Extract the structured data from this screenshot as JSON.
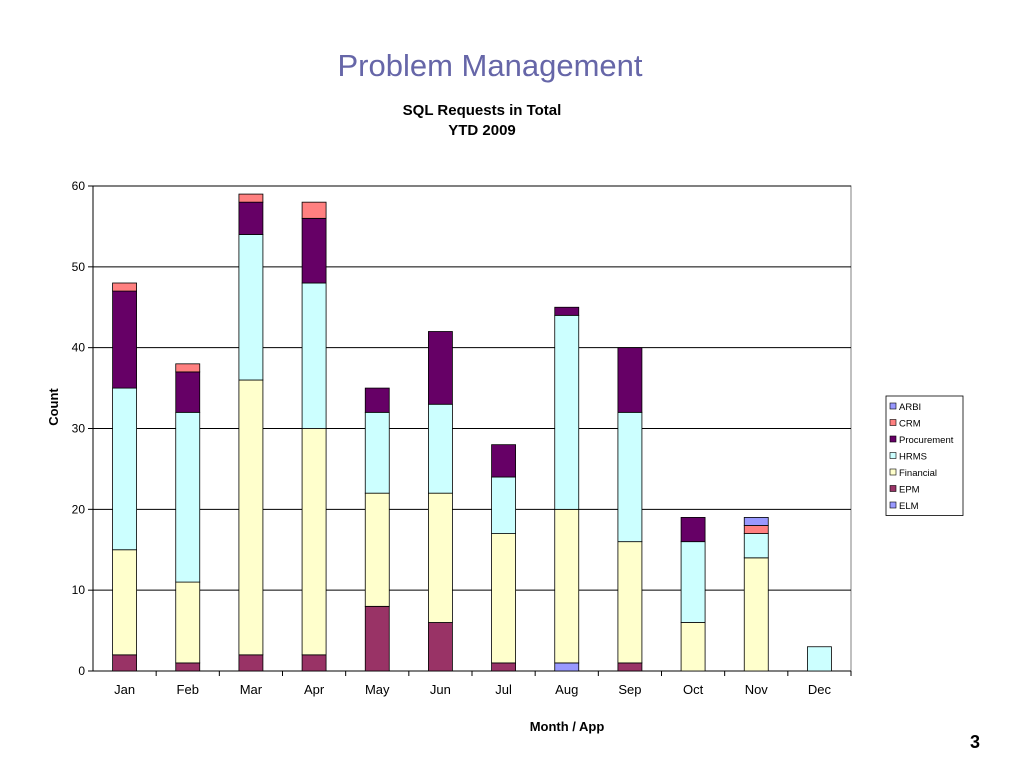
{
  "slide": {
    "title": "Problem Management",
    "page_number": "3"
  },
  "colors": {
    "ARBI": "#9999ff",
    "CRM": "#ff8080",
    "Procurement": "#660066",
    "HRMS": "#ccffff",
    "Financial": "#ffffcc",
    "EPM": "#993366",
    "ELM": "#9999ff"
  },
  "chart_data": {
    "type": "bar",
    "stacked": true,
    "title": "SQL Requests in Total",
    "subtitle": "YTD 2009",
    "xlabel": "Month / App",
    "ylabel": "Count",
    "ylim": [
      0,
      60
    ],
    "yticks": [
      0,
      10,
      20,
      30,
      40,
      50,
      60
    ],
    "grid": true,
    "legend_position": "right",
    "categories": [
      "Jan",
      "Feb",
      "Mar",
      "Apr",
      "May",
      "Jun",
      "Jul",
      "Aug",
      "Sep",
      "Oct",
      "Nov",
      "Dec"
    ],
    "series": [
      {
        "name": "ELM",
        "values": [
          0,
          0,
          0,
          0,
          0,
          0,
          0,
          1,
          0,
          0,
          0,
          0
        ]
      },
      {
        "name": "EPM",
        "values": [
          2,
          1,
          2,
          2,
          8,
          6,
          1,
          0,
          1,
          0,
          0,
          0
        ]
      },
      {
        "name": "Financial",
        "values": [
          13,
          10,
          34,
          28,
          14,
          16,
          16,
          19,
          15,
          6,
          14,
          0
        ]
      },
      {
        "name": "HRMS",
        "values": [
          20,
          21,
          18,
          18,
          10,
          11,
          7,
          24,
          16,
          10,
          3,
          3
        ]
      },
      {
        "name": "Procurement",
        "values": [
          12,
          5,
          4,
          8,
          3,
          9,
          4,
          1,
          8,
          3,
          0,
          0
        ]
      },
      {
        "name": "CRM",
        "values": [
          1,
          1,
          1,
          2,
          0,
          0,
          0,
          0,
          0,
          0,
          1,
          0
        ]
      },
      {
        "name": "ARBI",
        "values": [
          0,
          0,
          0,
          0,
          0,
          0,
          0,
          0,
          0,
          0,
          1,
          0
        ]
      }
    ],
    "legend_order": [
      "ARBI",
      "CRM",
      "Procurement",
      "HRMS",
      "Financial",
      "EPM",
      "ELM"
    ]
  }
}
